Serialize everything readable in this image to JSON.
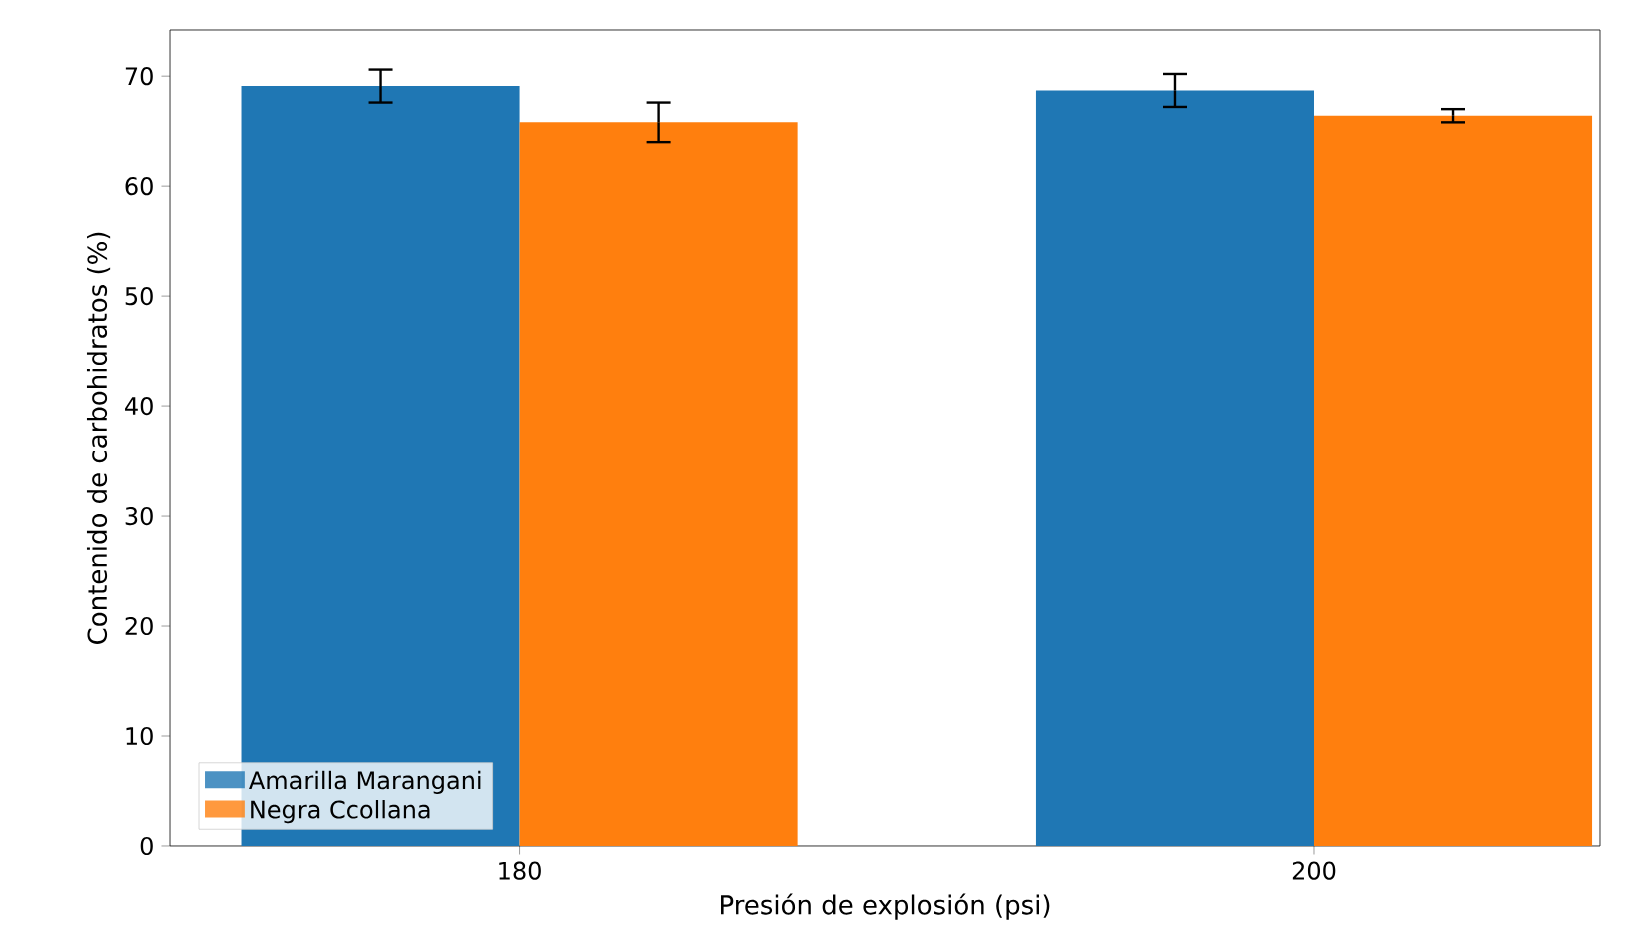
{
  "chart_data": {
    "type": "bar",
    "xlabel": "Presión de explosión (psi)",
    "ylabel": "Contenido de carbohidratos (%)",
    "categories": [
      "180",
      "200"
    ],
    "series": [
      {
        "name": "Amarilla Marangani",
        "color": "#1f77b4",
        "values": [
          69.1,
          68.7
        ],
        "errors": [
          1.5,
          1.5
        ]
      },
      {
        "name": "Negra Ccollana",
        "color": "#ff7f0e",
        "values": [
          65.8,
          66.4
        ],
        "errors": [
          1.8,
          0.6
        ]
      }
    ],
    "ylim": [
      0,
      74.2
    ],
    "yticks": [
      0,
      10,
      20,
      30,
      40,
      50,
      60,
      70
    ],
    "grid": false,
    "legend": "bottom left"
  }
}
